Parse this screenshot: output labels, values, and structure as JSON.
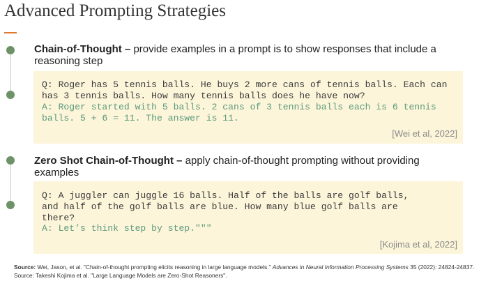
{
  "title": "Advanced Prompting Strategies",
  "sections": [
    {
      "heading": "Chain-of-Thought –",
      "description": "provide examples in a prompt is to show responses that include a reasoning step",
      "prompt_lines": [
        "Q: Roger has 5 tennis balls. He buys 2 more cans of tennis balls. Each can",
        "has 3 tennis balls. How many tennis balls does he have now?"
      ],
      "answer_lines": [
        "A: Roger started with 5 balls. 2 cans of 3 tennis balls each is 6 tennis",
        "balls. 5 + 6 = 11. The answer is 11."
      ],
      "citation": "[Wei et al, 2022]"
    },
    {
      "heading": "Zero Shot Chain-of-Thought –",
      "description": "apply chain-of-thought prompting without providing examples",
      "prompt_lines": [
        "Q: A juggler can juggle 16 balls. Half of the balls are golf balls,",
        "and half of the golf balls are blue. How many blue golf balls are",
        "there?"
      ],
      "answer_lines": [
        "A: Let’s think step by step.\"\"\""
      ],
      "citation": "[Kojima et al, 2022]"
    }
  ],
  "sources": [
    {
      "label": "Source:",
      "text": "Wei, Jason, et al. \"Chain-of-thought prompting elicits reasoning in large language models.\"",
      "journal": "Advances in Neural Information Processing Systems",
      "rest": "35 (2022): 24824-24837."
    },
    {
      "text": "Source: Takeshi Kojima et al. \"Large Language Models are Zero-Shot Reasoners\"."
    }
  ]
}
